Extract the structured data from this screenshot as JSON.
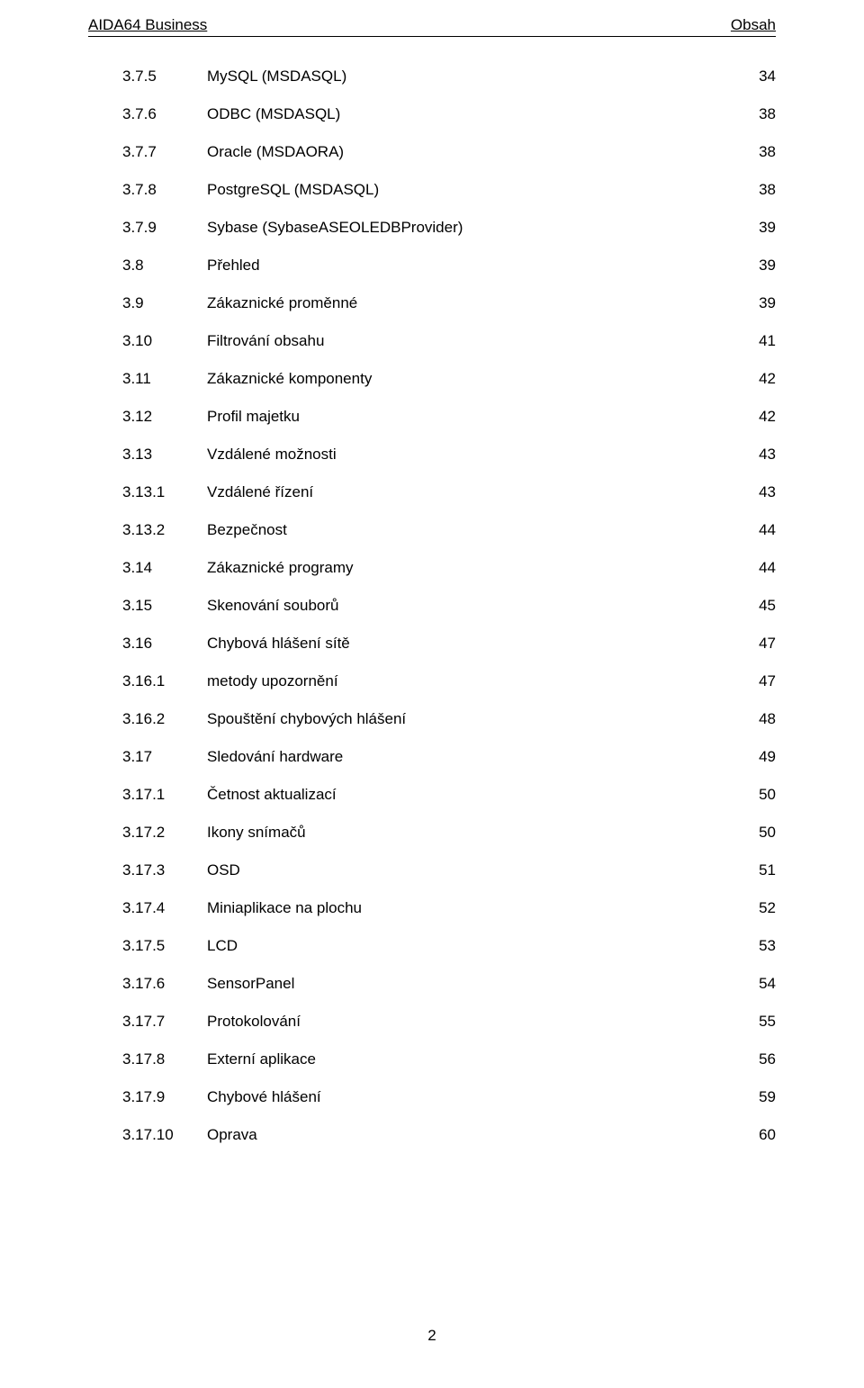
{
  "header": {
    "left": "AIDA64 Business",
    "right": "Obsah"
  },
  "toc_entries": [
    {
      "level": 2,
      "num": "3.7.5",
      "title": "MySQL (MSDASQL)",
      "page": "34"
    },
    {
      "level": 2,
      "num": "3.7.6",
      "title": "ODBC (MSDASQL)",
      "page": "38"
    },
    {
      "level": 2,
      "num": "3.7.7",
      "title": "Oracle (MSDAORA)",
      "page": "38"
    },
    {
      "level": 2,
      "num": "3.7.8",
      "title": "PostgreSQL (MSDASQL)",
      "page": "38"
    },
    {
      "level": 2,
      "num": "3.7.9",
      "title": "Sybase (SybaseASEOLEDBProvider)",
      "page": "39"
    },
    {
      "level": 1,
      "num": "3.8",
      "title": "Přehled",
      "page": "39"
    },
    {
      "level": 1,
      "num": "3.9",
      "title": "Zákaznické proměnné",
      "page": "39"
    },
    {
      "level": 1,
      "num": "3.10",
      "title": "Filtrování obsahu",
      "page": "41"
    },
    {
      "level": 1,
      "num": "3.11",
      "title": "Zákaznické komponenty",
      "page": "42"
    },
    {
      "level": 1,
      "num": "3.12",
      "title": "Profil majetku",
      "page": "42"
    },
    {
      "level": 1,
      "num": "3.13",
      "title": "Vzdálené možnosti",
      "page": "43"
    },
    {
      "level": 2,
      "num": "3.13.1",
      "title": "Vzdálené řízení",
      "page": "43"
    },
    {
      "level": 2,
      "num": "3.13.2",
      "title": "Bezpečnost",
      "page": "44"
    },
    {
      "level": 1,
      "num": "3.14",
      "title": "Zákaznické programy",
      "page": "44"
    },
    {
      "level": 1,
      "num": "3.15",
      "title": "Skenování souborů",
      "page": "45"
    },
    {
      "level": 1,
      "num": "3.16",
      "title": "Chybová hlášení sítě",
      "page": "47"
    },
    {
      "level": 2,
      "num": "3.16.1",
      "title": "metody upozornění",
      "page": "47"
    },
    {
      "level": 2,
      "num": "3.16.2",
      "title": "Spouštění chybových hlášení",
      "page": "48"
    },
    {
      "level": 1,
      "num": "3.17",
      "title": "Sledování hardware",
      "page": "49"
    },
    {
      "level": 2,
      "num": "3.17.1",
      "title": "Četnost aktualizací",
      "page": "50"
    },
    {
      "level": 2,
      "num": "3.17.2",
      "title": "Ikony snímačů",
      "page": "50"
    },
    {
      "level": 2,
      "num": "3.17.3",
      "title": "OSD",
      "page": "51"
    },
    {
      "level": 2,
      "num": "3.17.4",
      "title": "Miniaplikace na plochu",
      "page": "52"
    },
    {
      "level": 2,
      "num": "3.17.5",
      "title": "LCD",
      "page": "53"
    },
    {
      "level": 2,
      "num": "3.17.6",
      "title": "SensorPanel",
      "page": "54"
    },
    {
      "level": 2,
      "num": "3.17.7",
      "title": "Protokolování",
      "page": "55"
    },
    {
      "level": 2,
      "num": "3.17.8",
      "title": "Externí aplikace",
      "page": "56"
    },
    {
      "level": 2,
      "num": "3.17.9",
      "title": "Chybové hlášení",
      "page": "59"
    },
    {
      "level": 2,
      "num": "3.17.10",
      "title": "Oprava",
      "page": "60"
    }
  ],
  "footer": {
    "page_number": "2"
  }
}
